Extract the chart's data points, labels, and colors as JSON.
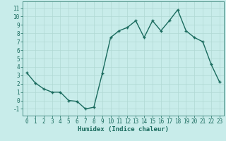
{
  "x": [
    0,
    1,
    2,
    3,
    4,
    5,
    6,
    7,
    8,
    9,
    10,
    11,
    12,
    13,
    14,
    15,
    16,
    17,
    18,
    19,
    20,
    21,
    22,
    23
  ],
  "y": [
    3.3,
    2.1,
    1.4,
    1.0,
    1.0,
    0.0,
    -0.1,
    -1.0,
    -0.8,
    3.2,
    7.5,
    8.3,
    8.7,
    9.5,
    7.5,
    9.5,
    8.3,
    9.5,
    10.8,
    8.3,
    7.5,
    7.0,
    4.3,
    2.2
  ],
  "line_color": "#1a6b5e",
  "marker": "+",
  "bg_color": "#c8ecea",
  "grid_color": "#b0d8d4",
  "xlabel": "Humidex (Indice chaleur)",
  "ylim": [
    -1.8,
    11.8
  ],
  "xlim": [
    -0.5,
    23.5
  ],
  "yticks": [
    -1,
    0,
    1,
    2,
    3,
    4,
    5,
    6,
    7,
    8,
    9,
    10,
    11
  ],
  "xticks": [
    0,
    1,
    2,
    3,
    4,
    5,
    6,
    7,
    8,
    9,
    10,
    11,
    12,
    13,
    14,
    15,
    16,
    17,
    18,
    19,
    20,
    21,
    22,
    23
  ],
  "xlabel_fontsize": 6.5,
  "tick_fontsize": 5.5,
  "line_width": 1.0,
  "marker_size": 3.5,
  "marker_edge_width": 1.0
}
